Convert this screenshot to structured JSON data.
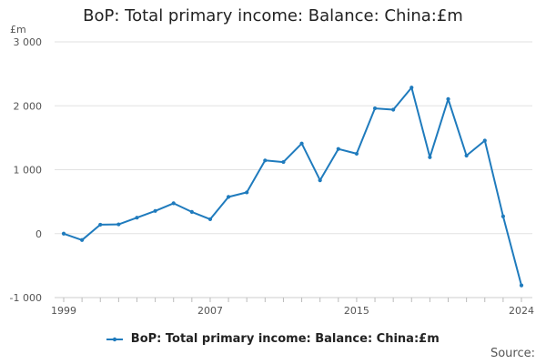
{
  "chart_data": {
    "type": "line",
    "title": "BoP: Total primary income: Balance: China:£m",
    "ylabel": "£m",
    "xlabel": "",
    "ylim": [
      -1000,
      3000
    ],
    "xlim": [
      1999,
      2024
    ],
    "yticks": [
      -1000,
      0,
      1000,
      2000,
      3000
    ],
    "ytick_labels": [
      "-1 000",
      "0",
      "1 000",
      "2 000",
      "3 000"
    ],
    "xticks": [
      1999,
      2007,
      2015,
      2024
    ],
    "xtick_labels": [
      "1999",
      "2007",
      "2015",
      "2024"
    ],
    "grid": "horizontal",
    "legend_position": "bottom",
    "series": [
      {
        "name": "BoP: Total primary income: Balance: China:£m",
        "color": "#1f7bbd",
        "x": [
          1999,
          2000,
          2001,
          2002,
          2003,
          2004,
          2005,
          2006,
          2007,
          2008,
          2009,
          2010,
          2011,
          2012,
          2013,
          2014,
          2015,
          2016,
          2017,
          2018,
          2019,
          2020,
          2021,
          2022,
          2023,
          2024
        ],
        "values": [
          0,
          -100,
          140,
          145,
          250,
          355,
          475,
          340,
          225,
          575,
          645,
          1145,
          1120,
          1410,
          835,
          1325,
          1250,
          1960,
          1940,
          2285,
          1195,
          2105,
          1220,
          1455,
          270,
          -810
        ]
      }
    ]
  },
  "footer": {
    "source_label": "Source:"
  }
}
